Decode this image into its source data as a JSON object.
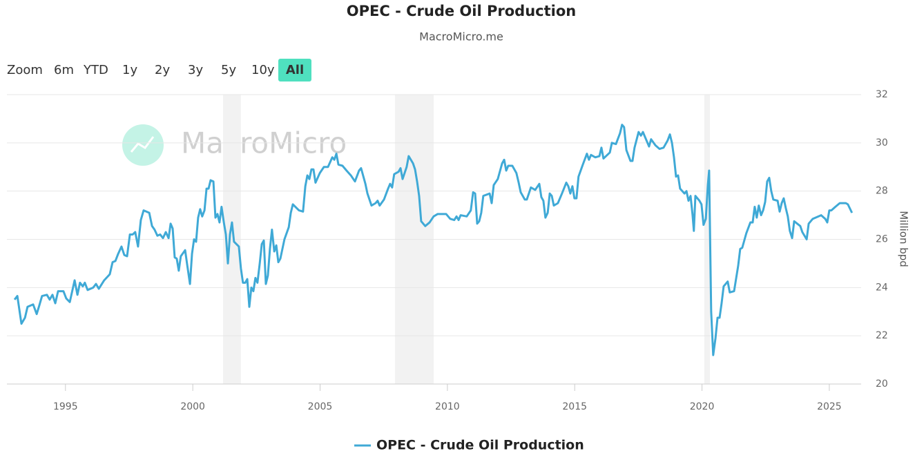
{
  "chart_data": {
    "type": "line",
    "title": "OPEC - Crude Oil Production",
    "subtitle": "MacroMicro.me",
    "watermark": "MacroMicro",
    "range_selector": {
      "label": "Zoom",
      "buttons": [
        "6m",
        "YTD",
        "1y",
        "2y",
        "3y",
        "5y",
        "10y",
        "All"
      ],
      "selected": 7
    },
    "y_label": "Million bpd",
    "xlim": [
      1992.7,
      2026.25
    ],
    "xticks": [
      1995,
      2000,
      2005,
      2010,
      2015,
      2020,
      2025
    ],
    "ylim": [
      20,
      32
    ],
    "yticks": [
      20,
      22,
      24,
      26,
      28,
      30,
      32
    ],
    "grid": true,
    "legend": "bottom",
    "shaded_ranges": [
      [
        2001.19,
        2001.89
      ],
      [
        2007.94,
        2009.46
      ],
      [
        2020.09,
        2020.31
      ]
    ],
    "x": [
      1993.0,
      1993.11,
      1993.27,
      1993.41,
      1993.51,
      1993.73,
      1993.87,
      1993.97,
      1994.08,
      1994.27,
      1994.38,
      1994.49,
      1994.6,
      1994.71,
      1994.92,
      1995.03,
      1995.17,
      1995.36,
      1995.47,
      1995.57,
      1995.68,
      1995.76,
      1995.87,
      1996.09,
      1996.2,
      1996.31,
      1996.52,
      1996.74,
      1996.85,
      1996.96,
      1997.07,
      1997.2,
      1997.31,
      1997.42,
      1997.53,
      1997.64,
      1997.74,
      1997.85,
      1997.96,
      1998.07,
      1998.29,
      1998.4,
      1998.5,
      1998.61,
      1998.72,
      1998.83,
      1998.94,
      1999.05,
      1999.13,
      1999.21,
      1999.29,
      1999.37,
      1999.45,
      1999.53,
      1999.7,
      1999.78,
      1999.89,
      1999.97,
      2000.05,
      2000.13,
      2000.21,
      2000.29,
      2000.37,
      2000.46,
      2000.54,
      2000.62,
      2000.7,
      2000.81,
      2000.89,
      2000.97,
      2001.05,
      2001.13,
      2001.22,
      2001.3,
      2001.38,
      2001.46,
      2001.54,
      2001.62,
      2001.81,
      2001.89,
      2001.97,
      2002.06,
      2002.14,
      2002.22,
      2002.3,
      2002.38,
      2002.46,
      2002.54,
      2002.63,
      2002.71,
      2002.79,
      2002.87,
      2002.95,
      2003.03,
      2003.11,
      2003.2,
      2003.28,
      2003.36,
      2003.44,
      2003.6,
      2003.77,
      2003.85,
      2003.93,
      2004.17,
      2004.33,
      2004.42,
      2004.5,
      2004.58,
      2004.66,
      2004.74,
      2004.82,
      2004.99,
      2005.15,
      2005.31,
      2005.48,
      2005.56,
      2005.64,
      2005.72,
      2005.88,
      2006.04,
      2006.21,
      2006.37,
      2006.53,
      2006.61,
      2006.78,
      2006.86,
      2007.02,
      2007.18,
      2007.26,
      2007.34,
      2007.51,
      2007.67,
      2007.75,
      2007.83,
      2007.91,
      2008.08,
      2008.16,
      2008.24,
      2008.4,
      2008.48,
      2008.65,
      2008.73,
      2008.81,
      2008.89,
      2008.97,
      2009.13,
      2009.3,
      2009.46,
      2009.62,
      2009.95,
      2010.11,
      2010.27,
      2010.36,
      2010.44,
      2010.52,
      2010.76,
      2010.92,
      2011.01,
      2011.09,
      2011.17,
      2011.25,
      2011.33,
      2011.41,
      2011.66,
      2011.74,
      2011.82,
      2011.98,
      2012.15,
      2012.23,
      2012.31,
      2012.39,
      2012.55,
      2012.71,
      2012.8,
      2012.88,
      2013.04,
      2013.12,
      2013.28,
      2013.45,
      2013.61,
      2013.69,
      2013.77,
      2013.85,
      2013.94,
      2014.02,
      2014.1,
      2014.18,
      2014.34,
      2014.5,
      2014.67,
      2014.75,
      2014.83,
      2014.91,
      2014.99,
      2015.07,
      2015.15,
      2015.32,
      2015.48,
      2015.56,
      2015.64,
      2015.81,
      2015.97,
      2016.05,
      2016.13,
      2016.38,
      2016.46,
      2016.62,
      2016.78,
      2016.86,
      2016.94,
      2017.03,
      2017.19,
      2017.27,
      2017.35,
      2017.51,
      2017.6,
      2017.68,
      2017.92,
      2018.0,
      2018.17,
      2018.33,
      2018.49,
      2018.65,
      2018.74,
      2018.82,
      2018.9,
      2018.98,
      2019.06,
      2019.14,
      2019.31,
      2019.39,
      2019.47,
      2019.55,
      2019.63,
      2019.68,
      2019.74,
      2019.9,
      2019.98,
      2020.06,
      2020.15,
      2020.23,
      2020.28,
      2020.36,
      2020.44,
      2020.53,
      2020.61,
      2020.69,
      2020.77,
      2020.85,
      2021.01,
      2021.09,
      2021.26,
      2021.42,
      2021.5,
      2021.58,
      2021.74,
      2021.9,
      2021.99,
      2022.07,
      2022.15,
      2022.23,
      2022.32,
      2022.4,
      2022.48,
      2022.56,
      2022.64,
      2022.72,
      2022.8,
      2022.97,
      2023.05,
      2023.13,
      2023.21,
      2023.29,
      2023.37,
      2023.45,
      2023.54,
      2023.62,
      2023.86,
      2023.94,
      2024.11,
      2024.19,
      2024.35,
      2024.68,
      2024.84,
      2024.92,
      2025.0,
      2025.08,
      2025.24,
      2025.41,
      2025.65,
      2025.73,
      2025.89
    ],
    "series": [
      {
        "name": "OPEC - Crude Oil Production",
        "color": "#3fa9d6",
        "values": [
          23.5,
          23.65,
          22.5,
          22.75,
          23.2,
          23.3,
          22.9,
          23.25,
          23.65,
          23.7,
          23.5,
          23.7,
          23.35,
          23.85,
          23.85,
          23.55,
          23.4,
          24.3,
          23.7,
          24.2,
          24.05,
          24.2,
          23.9,
          24.0,
          24.15,
          23.95,
          24.3,
          24.55,
          25.05,
          25.1,
          25.4,
          25.7,
          25.35,
          25.3,
          26.2,
          26.2,
          26.3,
          25.7,
          26.8,
          27.2,
          27.1,
          26.55,
          26.4,
          26.15,
          26.2,
          26.05,
          26.3,
          26.05,
          26.65,
          26.45,
          25.25,
          25.2,
          24.7,
          25.3,
          25.55,
          24.95,
          24.15,
          25.4,
          26.0,
          25.9,
          26.9,
          27.25,
          26.95,
          27.2,
          28.1,
          28.1,
          28.45,
          28.4,
          26.9,
          27.05,
          26.7,
          27.35,
          26.7,
          26.2,
          25.0,
          26.2,
          26.7,
          25.9,
          25.7,
          24.8,
          24.2,
          24.2,
          24.35,
          23.2,
          24.0,
          23.85,
          24.4,
          24.2,
          25.0,
          25.8,
          25.95,
          24.15,
          24.5,
          25.6,
          26.4,
          25.5,
          25.75,
          25.05,
          25.2,
          26.0,
          26.5,
          27.1,
          27.45,
          27.2,
          27.15,
          28.2,
          28.65,
          28.5,
          28.9,
          28.9,
          28.35,
          28.75,
          29.0,
          29.0,
          29.4,
          29.3,
          29.55,
          29.1,
          29.05,
          28.85,
          28.65,
          28.4,
          28.85,
          28.95,
          28.3,
          27.9,
          27.4,
          27.5,
          27.6,
          27.4,
          27.65,
          28.1,
          28.3,
          28.15,
          28.7,
          28.8,
          28.95,
          28.5,
          29.0,
          29.45,
          29.15,
          28.9,
          28.4,
          27.8,
          26.75,
          26.55,
          26.7,
          26.95,
          27.05,
          27.05,
          26.85,
          26.8,
          26.95,
          26.8,
          27.0,
          26.95,
          27.2,
          27.95,
          27.9,
          26.65,
          26.75,
          27.1,
          27.8,
          27.9,
          27.5,
          28.25,
          28.5,
          29.15,
          29.3,
          28.85,
          29.05,
          29.05,
          28.75,
          28.35,
          27.95,
          27.65,
          27.65,
          28.15,
          28.05,
          28.3,
          27.75,
          27.6,
          26.9,
          27.1,
          27.9,
          27.8,
          27.4,
          27.5,
          27.9,
          28.35,
          28.2,
          27.9,
          28.2,
          27.7,
          27.7,
          28.6,
          29.1,
          29.55,
          29.3,
          29.5,
          29.4,
          29.45,
          29.8,
          29.35,
          29.6,
          30.0,
          29.95,
          30.4,
          30.75,
          30.65,
          29.7,
          29.25,
          29.25,
          29.8,
          30.45,
          30.3,
          30.45,
          29.85,
          30.15,
          29.9,
          29.75,
          29.8,
          30.1,
          30.35,
          30.0,
          29.4,
          28.6,
          28.65,
          28.1,
          27.9,
          28.0,
          27.6,
          27.8,
          27.0,
          26.35,
          27.8,
          27.6,
          27.45,
          26.6,
          26.85,
          28.25,
          28.85,
          23.0,
          21.2,
          21.9,
          22.75,
          22.75,
          23.35,
          24.05,
          24.25,
          23.8,
          23.85,
          24.9,
          25.6,
          25.65,
          26.25,
          26.7,
          26.7,
          27.35,
          26.9,
          27.4,
          27.0,
          27.2,
          27.55,
          28.4,
          28.55,
          28.0,
          27.65,
          27.6,
          27.15,
          27.5,
          27.7,
          27.3,
          26.95,
          26.35,
          26.05,
          26.75,
          26.55,
          26.3,
          26.0,
          26.65,
          26.85,
          27.0,
          26.85,
          26.7,
          27.2,
          27.2,
          27.35,
          27.5,
          27.5,
          27.45,
          27.1
        ]
      }
    ]
  }
}
